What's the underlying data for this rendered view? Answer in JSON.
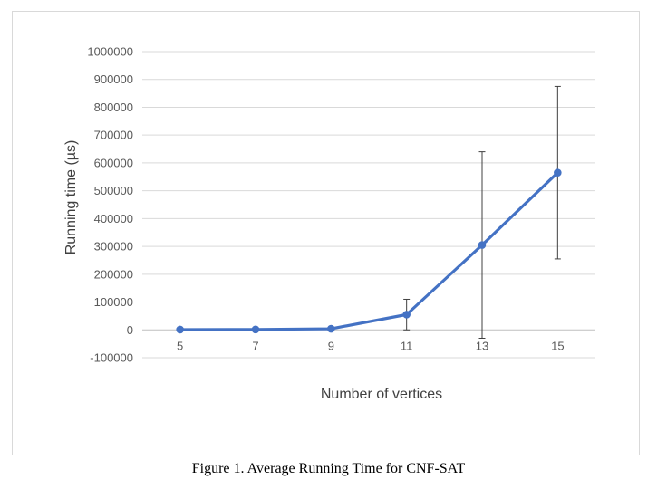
{
  "caption": "Figure 1. Average Running Time for CNF-SAT",
  "chart_data": {
    "type": "line",
    "xlabel": "Number of vertices",
    "ylabel": "Running time (µs)",
    "categories": [
      "5",
      "7",
      "9",
      "11",
      "13",
      "15"
    ],
    "series": [
      {
        "values": [
          1000,
          1500,
          4000,
          55000,
          305000,
          565000
        ],
        "error": [
          1000,
          1500,
          3000,
          55000,
          335000,
          310000
        ],
        "color": "#4472C4"
      }
    ],
    "ylim": [
      -100000,
      1000000
    ],
    "yticks": [
      -100000,
      0,
      100000,
      200000,
      300000,
      400000,
      500000,
      600000,
      700000,
      800000,
      900000,
      1000000
    ],
    "ytick_labels": [
      "-100000",
      "0",
      "100000",
      "200000",
      "300000",
      "400000",
      "500000",
      "600000",
      "700000",
      "800000",
      "900000",
      "1000000"
    ],
    "grid": true,
    "legend": false
  }
}
